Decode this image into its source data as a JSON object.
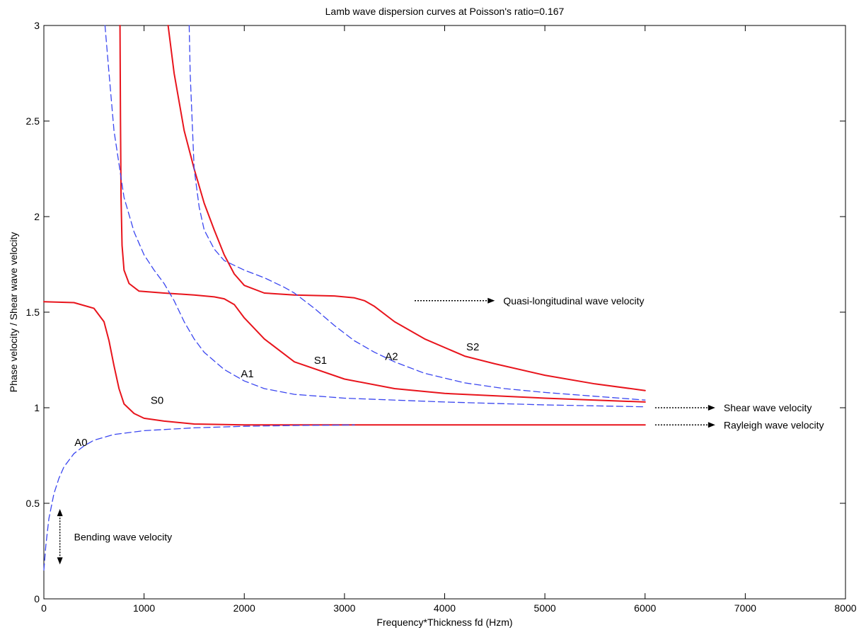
{
  "chart_data": {
    "type": "line",
    "title": "Lamb wave dispersion curves at Poisson's ratio=0.167",
    "xlabel": "Frequency*Thickness fd (Hzm)",
    "ylabel": "Phase velocity / Shear wave velocity",
    "xlim": [
      0,
      8000
    ],
    "ylim": [
      0,
      3
    ],
    "x_ticks": [
      "0",
      "1000",
      "2000",
      "3000",
      "4000",
      "5000",
      "6000",
      "7000",
      "8000"
    ],
    "y_ticks": [
      "0",
      "0.5",
      "1",
      "1.5",
      "2",
      "2.5",
      "3"
    ],
    "grid": false,
    "colors": {
      "symmetric": "#e8141c",
      "antisymmetric": "#3a46f0",
      "arrow": "#000000"
    },
    "series": [
      {
        "name": "S0",
        "style": "solid",
        "color": "#e8141c",
        "points": [
          [
            0,
            1.555
          ],
          [
            300,
            1.55
          ],
          [
            500,
            1.52
          ],
          [
            600,
            1.45
          ],
          [
            650,
            1.35
          ],
          [
            700,
            1.22
          ],
          [
            750,
            1.1
          ],
          [
            800,
            1.02
          ],
          [
            900,
            0.97
          ],
          [
            1000,
            0.945
          ],
          [
            1200,
            0.93
          ],
          [
            1500,
            0.915
          ],
          [
            2000,
            0.91
          ],
          [
            3000,
            0.91
          ],
          [
            4000,
            0.91
          ],
          [
            5000,
            0.91
          ],
          [
            6000,
            0.91
          ]
        ]
      },
      {
        "name": "A0",
        "style": "dashed",
        "color": "#3a46f0",
        "points": [
          [
            0,
            0.15
          ],
          [
            20,
            0.28
          ],
          [
            50,
            0.42
          ],
          [
            100,
            0.55
          ],
          [
            150,
            0.63
          ],
          [
            200,
            0.69
          ],
          [
            300,
            0.76
          ],
          [
            400,
            0.8
          ],
          [
            500,
            0.83
          ],
          [
            700,
            0.86
          ],
          [
            1000,
            0.88
          ],
          [
            1500,
            0.895
          ],
          [
            2000,
            0.903
          ],
          [
            2500,
            0.907
          ],
          [
            3100,
            0.91
          ]
        ]
      },
      {
        "name": "S1",
        "style": "solid",
        "color": "#e8141c",
        "points": [
          [
            760,
            3.0
          ],
          [
            765,
            2.5
          ],
          [
            770,
            2.1
          ],
          [
            780,
            1.85
          ],
          [
            800,
            1.72
          ],
          [
            850,
            1.65
          ],
          [
            950,
            1.61
          ],
          [
            1200,
            1.6
          ],
          [
            1500,
            1.59
          ],
          [
            1700,
            1.58
          ],
          [
            1800,
            1.57
          ],
          [
            1900,
            1.54
          ],
          [
            2000,
            1.47
          ],
          [
            2200,
            1.36
          ],
          [
            2500,
            1.24
          ],
          [
            3000,
            1.15
          ],
          [
            3500,
            1.1
          ],
          [
            4000,
            1.075
          ],
          [
            5000,
            1.05
          ],
          [
            6000,
            1.03
          ]
        ]
      },
      {
        "name": "A1",
        "style": "dashed",
        "color": "#3a46f0",
        "points": [
          [
            610,
            3.0
          ],
          [
            650,
            2.75
          ],
          [
            700,
            2.45
          ],
          [
            800,
            2.1
          ],
          [
            900,
            1.92
          ],
          [
            1000,
            1.8
          ],
          [
            1100,
            1.72
          ],
          [
            1200,
            1.65
          ],
          [
            1300,
            1.56
          ],
          [
            1400,
            1.45
          ],
          [
            1500,
            1.36
          ],
          [
            1600,
            1.29
          ],
          [
            1800,
            1.2
          ],
          [
            2000,
            1.14
          ],
          [
            2200,
            1.1
          ],
          [
            2500,
            1.07
          ],
          [
            3000,
            1.05
          ],
          [
            4000,
            1.03
          ],
          [
            5000,
            1.015
          ],
          [
            6000,
            1.005
          ]
        ]
      },
      {
        "name": "S2",
        "style": "solid",
        "color": "#e8141c",
        "points": [
          [
            1240,
            3.0
          ],
          [
            1300,
            2.75
          ],
          [
            1400,
            2.45
          ],
          [
            1500,
            2.25
          ],
          [
            1600,
            2.07
          ],
          [
            1700,
            1.93
          ],
          [
            1800,
            1.8
          ],
          [
            1900,
            1.7
          ],
          [
            2000,
            1.64
          ],
          [
            2200,
            1.6
          ],
          [
            2500,
            1.59
          ],
          [
            2900,
            1.585
          ],
          [
            3100,
            1.575
          ],
          [
            3200,
            1.56
          ],
          [
            3300,
            1.53
          ],
          [
            3500,
            1.45
          ],
          [
            3800,
            1.36
          ],
          [
            4200,
            1.27
          ],
          [
            4500,
            1.23
          ],
          [
            5000,
            1.17
          ],
          [
            5500,
            1.125
          ],
          [
            6000,
            1.09
          ]
        ]
      },
      {
        "name": "A2",
        "style": "dashed",
        "color": "#3a46f0",
        "points": [
          [
            1450,
            3.0
          ],
          [
            1460,
            2.75
          ],
          [
            1480,
            2.5
          ],
          [
            1500,
            2.25
          ],
          [
            1550,
            2.05
          ],
          [
            1600,
            1.93
          ],
          [
            1700,
            1.83
          ],
          [
            1800,
            1.77
          ],
          [
            2000,
            1.72
          ],
          [
            2200,
            1.68
          ],
          [
            2400,
            1.63
          ],
          [
            2500,
            1.6
          ],
          [
            2700,
            1.52
          ],
          [
            2900,
            1.43
          ],
          [
            3100,
            1.35
          ],
          [
            3300,
            1.29
          ],
          [
            3500,
            1.24
          ],
          [
            3800,
            1.18
          ],
          [
            4200,
            1.13
          ],
          [
            4600,
            1.1
          ],
          [
            5000,
            1.08
          ],
          [
            5500,
            1.06
          ],
          [
            6000,
            1.04
          ]
        ]
      }
    ],
    "mode_labels": [
      {
        "text": "A0",
        "x": 370,
        "y": 0.8
      },
      {
        "text": "S0",
        "x": 1130,
        "y": 1.02
      },
      {
        "text": "A1",
        "x": 2030,
        "y": 1.16
      },
      {
        "text": "S1",
        "x": 2760,
        "y": 1.23
      },
      {
        "text": "A2",
        "x": 3470,
        "y": 1.25
      },
      {
        "text": "S2",
        "x": 4280,
        "y": 1.3
      }
    ],
    "annotations": [
      {
        "text": "Quasi-longitudinal wave velocity",
        "arrow_x": [
          3700,
          4500
        ],
        "y": 1.56,
        "arrow": "right"
      },
      {
        "text": "Shear wave velocity",
        "arrow_x": [
          6100,
          6700
        ],
        "y": 1.0,
        "arrow": "right"
      },
      {
        "text": "Rayleigh wave velocity",
        "arrow_x": [
          6100,
          6700
        ],
        "y": 0.91,
        "arrow": "right"
      },
      {
        "text": "Bending wave velocity",
        "arrow_x": [
          160,
          160
        ],
        "y_range": [
          0.18,
          0.47
        ],
        "arrow": "both-vertical"
      }
    ]
  }
}
